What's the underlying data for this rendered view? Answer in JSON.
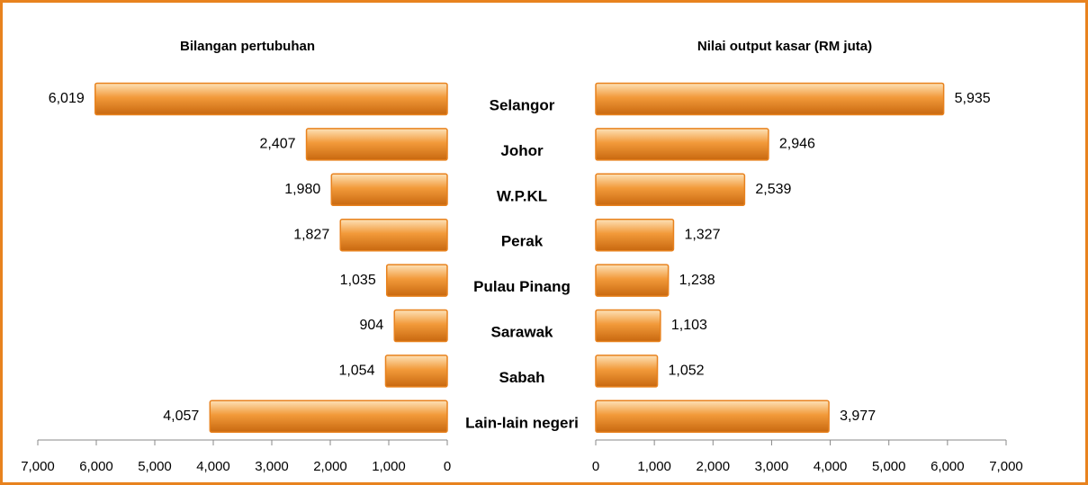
{
  "chart_data": [
    {
      "type": "bar",
      "title": "Bilangan pertubuhan",
      "orientation": "horizontal",
      "x_reversed": true,
      "categories": [
        "Selangor",
        "Johor",
        "W.P.KL",
        "Perak",
        "Pulau Pinang",
        "Sarawak",
        "Sabah",
        "Lain-lain negeri"
      ],
      "values": [
        6019,
        2407,
        1980,
        1827,
        1035,
        904,
        1054,
        4057
      ],
      "value_labels": [
        "6,019",
        "2,407",
        "1,980",
        "1,827",
        "1,035",
        "904",
        "1,054",
        "4,057"
      ],
      "color": "#e8821e",
      "xlim": [
        0,
        7000
      ],
      "xticks": [
        0,
        {
          "value": 1000,
          "label": "1,000"
        },
        {
          "value": 2000,
          "label": "2,000"
        },
        {
          "value": 3000,
          "label": "3,000"
        },
        {
          "value": 4000,
          "label": "4,000"
        },
        {
          "value": 5000,
          "label": "5,000"
        },
        {
          "value": 6000,
          "label": "6,000"
        },
        {
          "value": 7000,
          "label": "7,000"
        }
      ]
    },
    {
      "type": "bar",
      "title": "Nilai output kasar (RM juta)",
      "orientation": "horizontal",
      "x_reversed": false,
      "values": [
        5935,
        2946,
        2539,
        1327,
        1238,
        1103,
        1052,
        3977
      ],
      "value_labels": [
        "5,935",
        "2,946",
        "2,539",
        "1,327",
        "1,238",
        "1,103",
        "1,052",
        "3,977"
      ],
      "color": "#e8821e",
      "xlim": [
        0,
        7000
      ],
      "xticks": [
        0,
        {
          "value": 1000,
          "label": "1,000"
        },
        {
          "value": 2000,
          "label": "2,000"
        },
        {
          "value": 3000,
          "label": "3,000"
        },
        {
          "value": 4000,
          "label": "4,000"
        },
        {
          "value": 5000,
          "label": "5,000"
        },
        {
          "value": 6000,
          "label": "6,000"
        },
        {
          "value": 7000,
          "label": "7,000"
        }
      ]
    }
  ]
}
